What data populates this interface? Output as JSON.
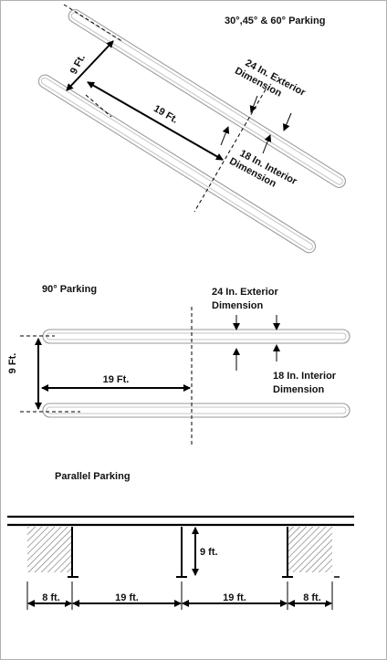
{
  "angled_section": {
    "title": "30°,45° & 60° Parking",
    "stall_width": "9 Ft.",
    "stall_length": "19 Ft.",
    "exterior_label": [
      "24 In. Exterior",
      "Dimension"
    ],
    "interior_label": [
      "18 In. Interior",
      "Dimension"
    ]
  },
  "perpendicular_section": {
    "title": "90° Parking",
    "stall_width": "9 Ft.",
    "stall_length": "19 Ft.",
    "exterior_label": [
      "24 In. Exterior",
      "Dimension"
    ],
    "interior_label": [
      "18 In. Interior",
      "Dimension"
    ]
  },
  "parallel_section": {
    "title": "Parallel Parking",
    "curb_offset": "9 ft.",
    "segments": [
      "8 ft.",
      "19 ft.",
      "19 ft.",
      "8 ft."
    ]
  }
}
